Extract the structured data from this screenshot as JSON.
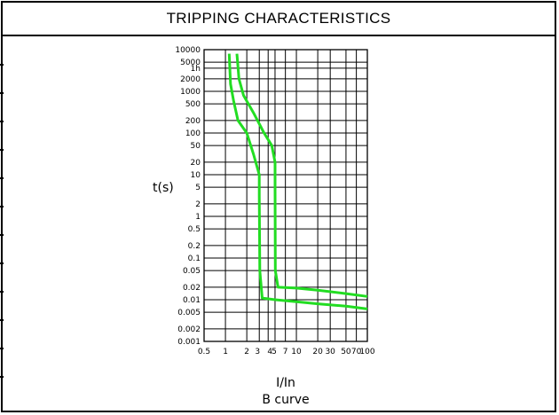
{
  "title": "TRIPPING CHARACTERISTICS",
  "chart_data": {
    "type": "line",
    "xscale": "log",
    "yscale": "log",
    "xlim": [
      0.5,
      100
    ],
    "ylim": [
      0.001,
      10000
    ],
    "xticks": [
      "0.5",
      "1",
      "2",
      "3",
      "4",
      "5",
      "7",
      "10",
      "20",
      "30",
      "50",
      "70",
      "100"
    ],
    "xtick_values": [
      0.5,
      1,
      2,
      3,
      4,
      5,
      7,
      10,
      20,
      30,
      50,
      70,
      100
    ],
    "yticks": [
      "10000",
      "5000",
      "1h",
      "2000",
      "1000",
      "500",
      "200",
      "100",
      "50",
      "20",
      "10",
      "5",
      "2",
      "1",
      "0.5",
      "0.2",
      "0.1",
      "0.05",
      "0.02",
      "0.01",
      "0.005",
      "0.002",
      "0.001"
    ],
    "ytick_values": [
      10000,
      5000,
      3600,
      2000,
      1000,
      500,
      200,
      100,
      50,
      20,
      10,
      5,
      2,
      1,
      0.5,
      0.2,
      0.1,
      0.05,
      0.02,
      0.01,
      0.005,
      0.002,
      0.001
    ],
    "ylabel": "t(s)",
    "xlabel": "I/In",
    "subtitle": "B curve",
    "grid": true,
    "line_color": "#22dd22",
    "series": [
      {
        "x": [
          1.13,
          1.18,
          1.3,
          1.5,
          2.0,
          2.5,
          3.0,
          3.0,
          3.05,
          3.3,
          5.0,
          10,
          20,
          50,
          100
        ],
        "y": [
          8000,
          1500,
          600,
          200,
          100,
          30,
          10,
          3,
          0.05,
          0.011,
          0.01,
          0.009,
          0.008,
          0.007,
          0.006
        ]
      },
      {
        "x": [
          1.45,
          1.55,
          1.8,
          2.5,
          3.5,
          4.5,
          5.0,
          5.0,
          5.05,
          5.5,
          10,
          20,
          50,
          100
        ],
        "y": [
          8000,
          2000,
          800,
          300,
          100,
          50,
          20,
          5,
          0.05,
          0.02,
          0.019,
          0.017,
          0.014,
          0.012
        ]
      }
    ]
  }
}
